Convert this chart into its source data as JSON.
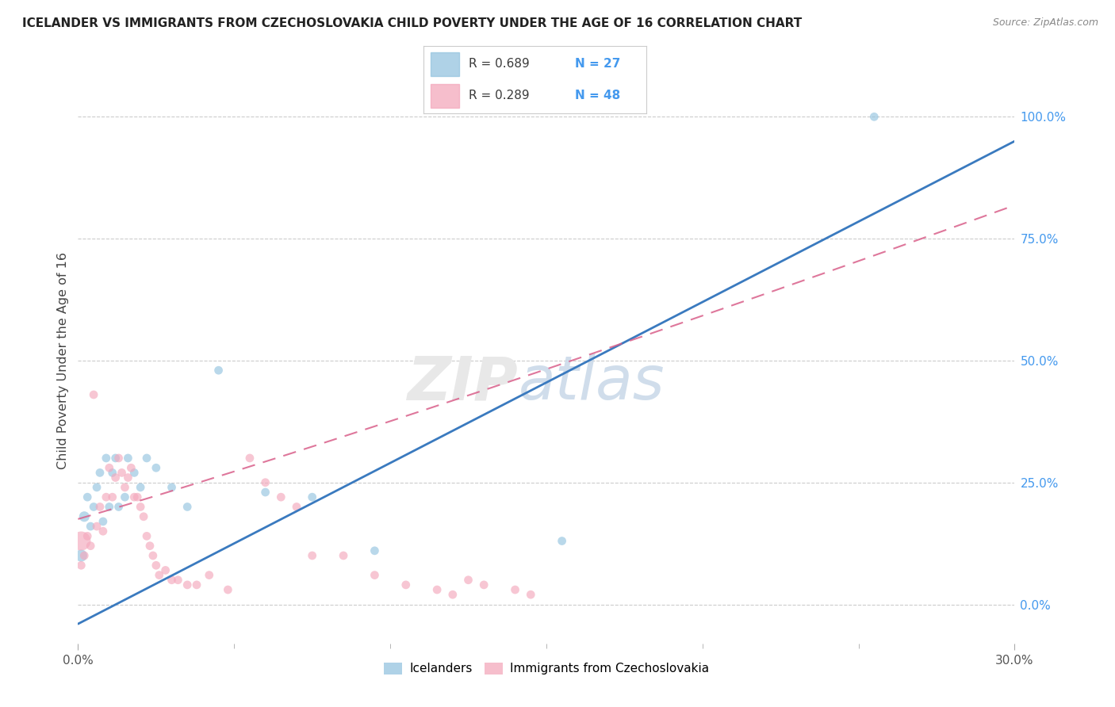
{
  "title": "ICELANDER VS IMMIGRANTS FROM CZECHOSLOVAKIA CHILD POVERTY UNDER THE AGE OF 16 CORRELATION CHART",
  "source": "Source: ZipAtlas.com",
  "ylabel": "Child Poverty Under the Age of 16",
  "xlim": [
    0.0,
    0.3
  ],
  "ylim": [
    -0.08,
    1.08
  ],
  "ytick_vals": [
    0.0,
    0.25,
    0.5,
    0.75,
    1.0
  ],
  "ytick_labels": [
    "0.0%",
    "25.0%",
    "50.0%",
    "75.0%",
    "100.0%"
  ],
  "legend_label1": "Icelanders",
  "legend_label2": "Immigrants from Czechoslovakia",
  "color_blue": "#94c4e0",
  "color_pink": "#f4a8bc",
  "line_blue": "#3a7abf",
  "line_pink": "#d95f8a",
  "blue_line_x0": 0.0,
  "blue_line_y0": -0.04,
  "blue_line_x1": 0.3,
  "blue_line_y1": 0.95,
  "pink_line_x0": 0.0,
  "pink_line_y0": 0.175,
  "pink_line_x1": 0.3,
  "pink_line_y1": 0.72,
  "icelanders_x": [
    0.001,
    0.002,
    0.003,
    0.004,
    0.005,
    0.006,
    0.007,
    0.008,
    0.009,
    0.01,
    0.011,
    0.012,
    0.013,
    0.015,
    0.016,
    0.018,
    0.02,
    0.022,
    0.025,
    0.03,
    0.035,
    0.045,
    0.06,
    0.075,
    0.095,
    0.155,
    0.255
  ],
  "icelanders_y": [
    0.1,
    0.18,
    0.22,
    0.16,
    0.2,
    0.24,
    0.27,
    0.17,
    0.3,
    0.2,
    0.27,
    0.3,
    0.2,
    0.22,
    0.3,
    0.27,
    0.24,
    0.3,
    0.28,
    0.24,
    0.2,
    0.48,
    0.23,
    0.22,
    0.11,
    0.13,
    1.0
  ],
  "icelanders_size": [
    120,
    90,
    60,
    60,
    60,
    60,
    60,
    60,
    60,
    60,
    60,
    60,
    60,
    60,
    60,
    60,
    60,
    60,
    60,
    60,
    60,
    60,
    60,
    60,
    60,
    60,
    60
  ],
  "czechs_x": [
    0.001,
    0.001,
    0.002,
    0.003,
    0.004,
    0.005,
    0.006,
    0.007,
    0.008,
    0.009,
    0.01,
    0.011,
    0.012,
    0.013,
    0.014,
    0.015,
    0.016,
    0.017,
    0.018,
    0.019,
    0.02,
    0.021,
    0.022,
    0.023,
    0.024,
    0.025,
    0.026,
    0.028,
    0.03,
    0.032,
    0.035,
    0.038,
    0.042,
    0.048,
    0.055,
    0.06,
    0.065,
    0.07,
    0.075,
    0.085,
    0.095,
    0.105,
    0.115,
    0.12,
    0.125,
    0.13,
    0.14,
    0.145
  ],
  "czechs_y": [
    0.13,
    0.08,
    0.1,
    0.14,
    0.12,
    0.43,
    0.16,
    0.2,
    0.15,
    0.22,
    0.28,
    0.22,
    0.26,
    0.3,
    0.27,
    0.24,
    0.26,
    0.28,
    0.22,
    0.22,
    0.2,
    0.18,
    0.14,
    0.12,
    0.1,
    0.08,
    0.06,
    0.07,
    0.05,
    0.05,
    0.04,
    0.04,
    0.06,
    0.03,
    0.3,
    0.25,
    0.22,
    0.2,
    0.1,
    0.1,
    0.06,
    0.04,
    0.03,
    0.02,
    0.05,
    0.04,
    0.03,
    0.02
  ],
  "czechs_size": [
    300,
    60,
    60,
    60,
    60,
    60,
    60,
    60,
    60,
    60,
    60,
    60,
    60,
    60,
    60,
    60,
    60,
    60,
    60,
    60,
    60,
    60,
    60,
    60,
    60,
    60,
    60,
    60,
    60,
    60,
    60,
    60,
    60,
    60,
    60,
    60,
    60,
    60,
    60,
    60,
    60,
    60,
    60,
    60,
    60,
    60,
    60,
    60
  ]
}
